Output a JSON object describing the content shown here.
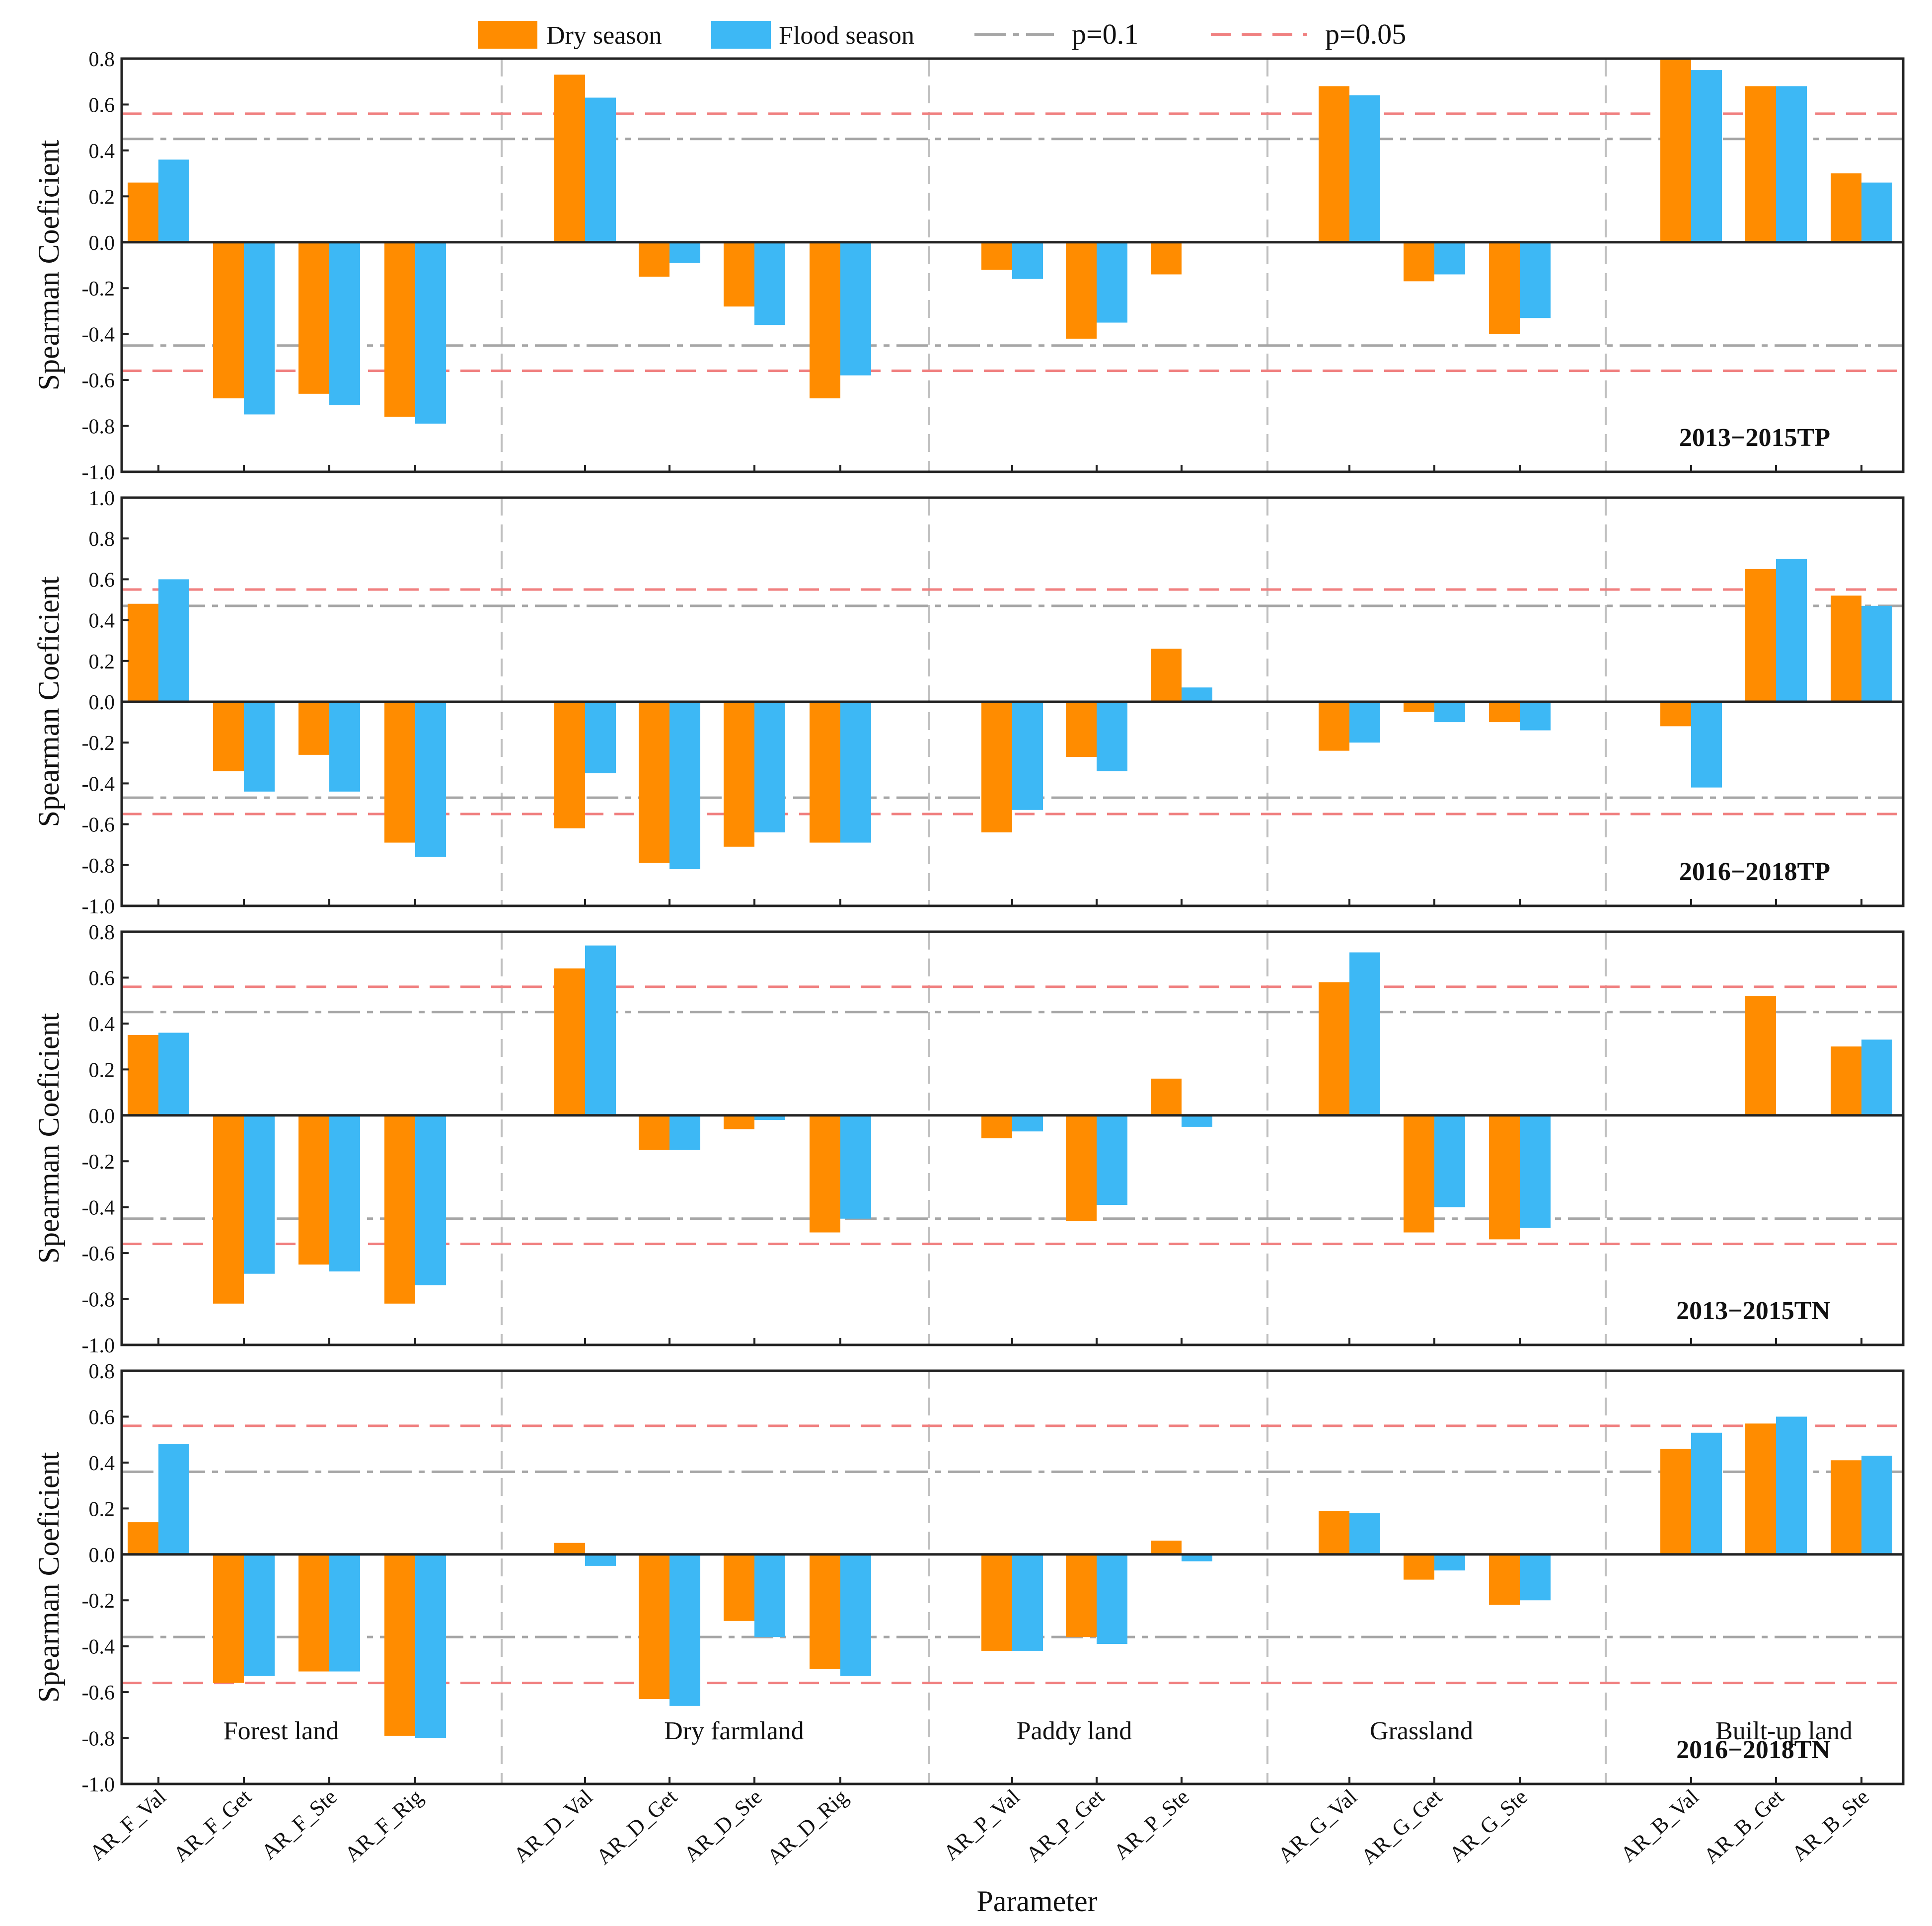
{
  "chart_data": {
    "type": "bar",
    "legend": {
      "placement": "top-center",
      "entries": [
        "Dry season",
        "Flood season",
        "p=0.1",
        "p=0.05"
      ]
    },
    "colors": {
      "dry": "#ff8c00",
      "flood": "#3db8f5",
      "p01": "#a6a6a6",
      "p005": "#f08080",
      "separator": "#bfbfbf",
      "axis": "#222222"
    },
    "ylabel": "Spearman Coeficient",
    "xlabel": "Parameter",
    "categories": [
      "AR_F_Val",
      "AR_F_Get",
      "AR_F_Ste",
      "AR_F_Rig",
      "AR_D_Val",
      "AR_D_Get",
      "AR_D_Ste",
      "AR_D_Rig",
      "AR_P_Val",
      "AR_P_Get",
      "AR_P_Ste",
      "AR_G_Val",
      "AR_G_Get",
      "AR_G_Ste",
      "AR_B_Val",
      "AR_B_Get",
      "AR_B_Ste"
    ],
    "groups": [
      {
        "name": "Forest land",
        "start": 0,
        "count": 4
      },
      {
        "name": "Dry farmland",
        "start": 4,
        "count": 4
      },
      {
        "name": "Paddy land",
        "start": 8,
        "count": 3
      },
      {
        "name": "Grassland",
        "start": 11,
        "count": 3
      },
      {
        "name": "Built-up land",
        "start": 14,
        "count": 3
      }
    ],
    "panels": [
      {
        "label": "2013−2015TP",
        "ylim": [
          -1.0,
          0.8
        ],
        "yticks": [
          "0.8",
          "0.6",
          "0.4",
          "0.2",
          "0.0",
          "-0.2",
          "-0.4",
          "-0.6",
          "-0.8",
          "-1.0"
        ],
        "p01": 0.45,
        "p005": 0.56,
        "series": [
          {
            "name": "Dry season",
            "values": [
              0.26,
              -0.68,
              -0.66,
              -0.76,
              0.73,
              -0.15,
              -0.28,
              -0.68,
              -0.12,
              -0.42,
              -0.14,
              0.68,
              -0.17,
              -0.4,
              0.8,
              0.68,
              0.3
            ]
          },
          {
            "name": "Flood season",
            "values": [
              0.36,
              -0.75,
              -0.71,
              -0.79,
              0.63,
              -0.09,
              -0.36,
              -0.58,
              -0.16,
              -0.35,
              0.0,
              0.64,
              -0.14,
              -0.33,
              0.75,
              0.68,
              0.26
            ]
          }
        ]
      },
      {
        "label": "2016−2018TP",
        "ylim": [
          -1.0,
          1.0
        ],
        "yticks": [
          "1.0",
          "0.8",
          "0.6",
          "0.4",
          "0.2",
          "0.0",
          "-0.2",
          "-0.4",
          "-0.6",
          "-0.8",
          "-1.0"
        ],
        "p01": 0.47,
        "p005": 0.55,
        "series": [
          {
            "name": "Dry season",
            "values": [
              0.48,
              -0.34,
              -0.26,
              -0.69,
              -0.62,
              -0.79,
              -0.71,
              -0.69,
              -0.64,
              -0.27,
              0.26,
              -0.24,
              -0.05,
              -0.1,
              -0.12,
              0.65,
              0.52
            ]
          },
          {
            "name": "Flood season",
            "values": [
              0.6,
              -0.44,
              -0.44,
              -0.76,
              -0.35,
              -0.82,
              -0.64,
              -0.69,
              -0.53,
              -0.34,
              0.07,
              -0.2,
              -0.1,
              -0.14,
              -0.42,
              0.7,
              0.47
            ]
          }
        ]
      },
      {
        "label": "2013−2015TN",
        "ylim": [
          -1.0,
          0.8
        ],
        "yticks": [
          "0.8",
          "0.6",
          "0.4",
          "0.2",
          "0.0",
          "-0.2",
          "-0.4",
          "-0.6",
          "-0.8",
          "-1.0"
        ],
        "p01": 0.45,
        "p005": 0.56,
        "series": [
          {
            "name": "Dry season",
            "values": [
              0.35,
              -0.82,
              -0.65,
              -0.82,
              0.64,
              -0.15,
              -0.06,
              -0.51,
              -0.1,
              -0.46,
              0.16,
              0.58,
              -0.51,
              -0.54,
              0.0,
              0.52,
              0.3
            ]
          },
          {
            "name": "Flood season",
            "values": [
              0.36,
              -0.69,
              -0.68,
              -0.74,
              0.74,
              -0.15,
              -0.02,
              -0.45,
              -0.07,
              -0.39,
              -0.05,
              0.71,
              -0.4,
              -0.49,
              0.0,
              0.0,
              0.33
            ]
          }
        ]
      },
      {
        "label": "2016−2018TN",
        "ylim": [
          -1.0,
          0.8
        ],
        "yticks": [
          "0.8",
          "0.6",
          "0.4",
          "0.2",
          "0.0",
          "-0.2",
          "-0.4",
          "-0.6",
          "-0.8",
          "-1.0"
        ],
        "p01": 0.36,
        "p005": 0.56,
        "series": [
          {
            "name": "Dry season",
            "values": [
              0.14,
              -0.56,
              -0.51,
              -0.79,
              0.05,
              -0.63,
              -0.29,
              -0.5,
              -0.42,
              -0.36,
              0.06,
              0.19,
              -0.11,
              -0.22,
              0.46,
              0.57,
              0.41
            ]
          },
          {
            "name": "Flood season",
            "values": [
              0.48,
              -0.53,
              -0.51,
              -0.8,
              -0.05,
              -0.66,
              -0.36,
              -0.53,
              -0.42,
              -0.39,
              -0.03,
              0.18,
              -0.07,
              -0.2,
              0.53,
              0.6,
              0.43
            ]
          }
        ]
      }
    ]
  }
}
